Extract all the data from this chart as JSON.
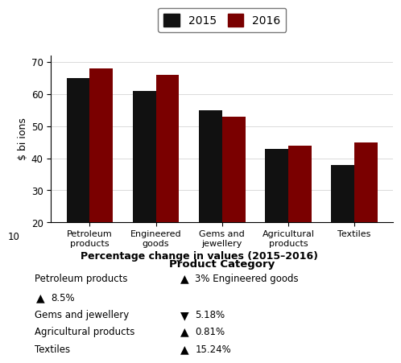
{
  "categories": [
    "Petroleum\nproducts",
    "Engineered\ngoods",
    "Gems and\njewellery",
    "Agricultural\nproducts",
    "Textiles"
  ],
  "values_2015": [
    65,
    61,
    55,
    43,
    38
  ],
  "values_2016": [
    68,
    66,
    53,
    44,
    45
  ],
  "bar_color_2015": "#111111",
  "bar_color_2016": "#7a0000",
  "ylim": [
    20,
    72
  ],
  "yticks": [
    20,
    30,
    40,
    50,
    60,
    70
  ],
  "ylabel": "$ bi ions",
  "xlabel": "Product Category",
  "legend_labels": [
    "2015",
    "2016"
  ],
  "title_below": "Percentage change in values (2015–2016)",
  "background_color": "#ffffff",
  "fig_width": 5.12,
  "fig_height": 4.71
}
